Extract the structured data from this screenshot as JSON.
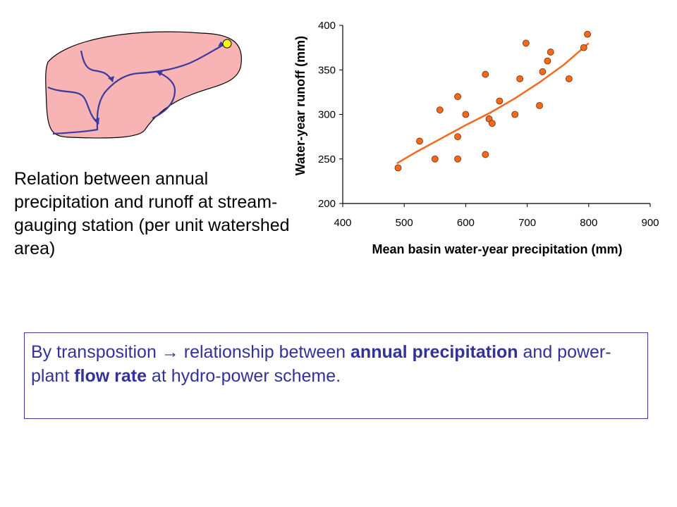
{
  "caption": "Relation between annual precipitation and runoff at stream-gauging station (per unit watershed area)",
  "note": {
    "part1": "By transposition → relationship between ",
    "bold1": "annual precipitation",
    "part2": " and power-plant ",
    "bold2": "flow rate",
    "part3": " at hydro-power scheme."
  },
  "colors": {
    "watershed_fill": "#f8b4b4",
    "river": "#3a3aa0",
    "station": "#ffff00",
    "points": "#f26a1c",
    "trend": "#f26a1c",
    "note_text": "#32329a"
  },
  "chart_data": {
    "type": "scatter",
    "xlabel": "Mean basin water-year precipitation (mm)",
    "ylabel": "Water-year runoff (mm)",
    "xlim": [
      400,
      900
    ],
    "ylim": [
      200,
      400
    ],
    "xticks": [
      400,
      500,
      600,
      700,
      800,
      900
    ],
    "yticks": [
      200,
      250,
      300,
      350,
      400
    ],
    "grid": false,
    "legend": "none",
    "points": [
      [
        490,
        240
      ],
      [
        525,
        270
      ],
      [
        550,
        250
      ],
      [
        558,
        305
      ],
      [
        587,
        320
      ],
      [
        587,
        275
      ],
      [
        587,
        250
      ],
      [
        600,
        300
      ],
      [
        632,
        345
      ],
      [
        632,
        255
      ],
      [
        638,
        295
      ],
      [
        643,
        290
      ],
      [
        655,
        315
      ],
      [
        680,
        300
      ],
      [
        688,
        340
      ],
      [
        698,
        380
      ],
      [
        720,
        310
      ],
      [
        725,
        348
      ],
      [
        733,
        360
      ],
      [
        738,
        370
      ],
      [
        768,
        340
      ],
      [
        792,
        375
      ],
      [
        798,
        390
      ]
    ],
    "trendline": [
      [
        488,
        245
      ],
      [
        520,
        258
      ],
      [
        560,
        273
      ],
      [
        600,
        288
      ],
      [
        640,
        302
      ],
      [
        680,
        318
      ],
      [
        720,
        336
      ],
      [
        760,
        356
      ],
      [
        800,
        380
      ]
    ]
  }
}
